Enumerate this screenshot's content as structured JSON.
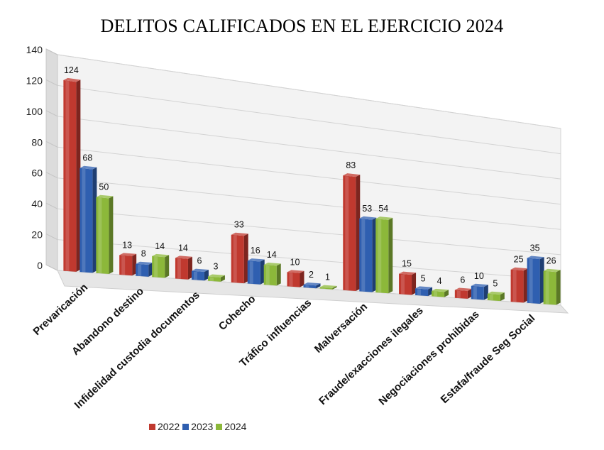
{
  "chart_data": {
    "type": "bar",
    "title": "DELITOS CALIFICADOS EN EL EJERCICIO 2024",
    "categories": [
      "Prevaricación",
      "Abandono destino",
      "Infidelidad custodia documentos",
      "Cohecho",
      "Tráfico influencias",
      "Malversación",
      "Fraude/exacciones ilegales",
      "Negociaciones prohibidas",
      "Estafa/fraude Seg Social"
    ],
    "series": [
      {
        "name": "2022",
        "color": "#c0392f",
        "values": [
          124,
          13,
          14,
          33,
          10,
          83,
          15,
          6,
          25
        ]
      },
      {
        "name": "2023",
        "color": "#2f5fb0",
        "values": [
          68,
          8,
          6,
          16,
          2,
          53,
          5,
          10,
          35
        ]
      },
      {
        "name": "2024",
        "color": "#8cb83a",
        "values": [
          50,
          14,
          3,
          14,
          1,
          54,
          4,
          5,
          26
        ]
      }
    ],
    "ylim": [
      0,
      140
    ],
    "yticks": [
      0,
      20,
      40,
      60,
      80,
      100,
      120,
      140
    ],
    "grid": true,
    "legend_position": "bottom",
    "style": "3d-perspective"
  }
}
